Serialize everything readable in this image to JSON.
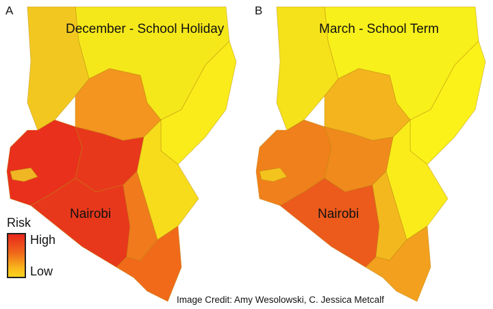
{
  "panels": [
    {
      "letter": "A",
      "title": "December - School Holiday",
      "city_label": "Nairobi",
      "colors": {
        "north": "#f5e81a",
        "northwest": "#f2c820",
        "lake": "#f0b624",
        "west": "#e8301c",
        "central": "#e8381c",
        "southcoast": "#e8381c",
        "southeast": "#f07a1c",
        "east": "#f7dc1c",
        "northeast": "#f9ec1a",
        "coast": "#f06a1a",
        "midwest": "#f3951e"
      }
    },
    {
      "letter": "B",
      "title": "March - School Term",
      "city_label": "Nairobi",
      "colors": {
        "north": "#f8f01a",
        "northwest": "#f5e21a",
        "lake": "#f3c41e",
        "west": "#f0801c",
        "central": "#f08a1c",
        "southcoast": "#ec5a1c",
        "southeast": "#f3b81e",
        "east": "#f9ec1a",
        "northeast": "#fbf21a",
        "coast": "#f3a01e",
        "midwest": "#f4b41e"
      }
    }
  ],
  "legend": {
    "title": "Risk",
    "high_label": "High",
    "low_label": "Low",
    "gradient_colors": [
      "#e8261c",
      "#f06a1a",
      "#f8b81c",
      "#fbd41e"
    ]
  },
  "credit": "Image Credit: Amy Wesolowski, C. Jessica Metcalf"
}
